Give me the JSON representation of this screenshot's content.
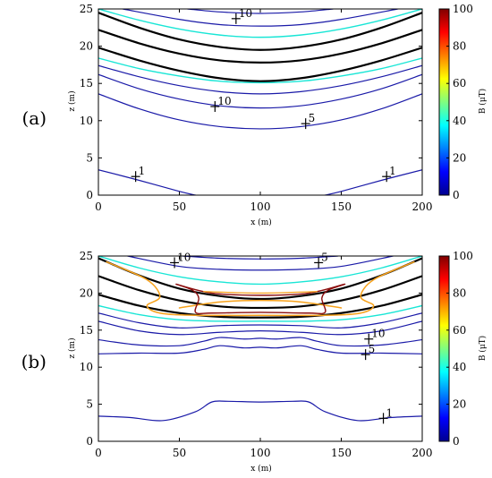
{
  "chart_data": [
    {
      "type": "contour",
      "panel_label": "(a)",
      "xlabel": "x (m)",
      "ylabel": "z (m)",
      "xlim": [
        0,
        200
      ],
      "ylim": [
        0,
        25
      ],
      "xticks": [
        "0",
        "50",
        "100",
        "150",
        "200"
      ],
      "yticks": [
        "0",
        "5",
        "10",
        "15",
        "20",
        "25"
      ],
      "colorbar": {
        "label": "B (μT)",
        "range": [
          0,
          100
        ],
        "ticks": [
          "0",
          "20",
          "40",
          "60",
          "80",
          "100"
        ]
      },
      "contours": [
        {
          "level": 1,
          "color": "#1a1aa8",
          "width": 1.2,
          "x": [
            0,
            25,
            50,
            60
          ],
          "z": [
            3.4,
            2.0,
            0.5,
            0
          ]
        },
        {
          "level": 1,
          "color": "#1a1aa8",
          "width": 1.2,
          "x": [
            140,
            150,
            175,
            200
          ],
          "z": [
            0,
            0.5,
            2.0,
            3.4
          ]
        },
        {
          "level": 5,
          "color": "#1a1aa8",
          "width": 1.2,
          "x": [
            0,
            25,
            50,
            75,
            100,
            125,
            150,
            175,
            200
          ],
          "z": [
            13.6,
            11.6,
            10.1,
            9.2,
            8.9,
            9.2,
            10.1,
            11.6,
            13.6
          ]
        },
        {
          "level": 10,
          "color": "#1a1aa8",
          "width": 1.2,
          "x": [
            0,
            25,
            50,
            75,
            100,
            125,
            150,
            175,
            200
          ],
          "z": [
            16.2,
            14.3,
            12.9,
            12.0,
            11.7,
            12.0,
            12.9,
            14.3,
            16.2
          ]
        },
        {
          "level": 15,
          "color": "#1a1aa8",
          "width": 1.2,
          "x": [
            0,
            25,
            50,
            75,
            100,
            125,
            150,
            175,
            200
          ],
          "z": [
            17.4,
            15.9,
            14.7,
            13.9,
            13.6,
            13.9,
            14.7,
            15.9,
            17.4
          ]
        },
        {
          "level": 25,
          "color": "#19e6d6",
          "width": 1.4,
          "x": [
            0,
            25,
            50,
            75,
            100,
            125,
            150,
            175,
            200
          ],
          "z": [
            18.4,
            17.0,
            16.0,
            15.3,
            15.1,
            15.3,
            16.0,
            17.0,
            18.4
          ]
        },
        {
          "level": 35,
          "color": "#000000",
          "width": 2.2,
          "x": [
            0,
            25,
            50,
            75,
            100,
            125,
            150,
            175,
            200
          ],
          "z": [
            19.8,
            18.1,
            16.7,
            15.7,
            15.3,
            15.7,
            16.7,
            18.1,
            19.8
          ]
        },
        {
          "level": 35,
          "color": "#000000",
          "width": 2.2,
          "x": [
            0,
            25,
            50,
            75,
            100,
            125,
            150,
            175,
            200
          ],
          "z": [
            24.5,
            22.5,
            20.9,
            19.9,
            19.5,
            19.9,
            20.9,
            22.5,
            24.5
          ]
        },
        {
          "level": 35,
          "color": "#000000",
          "width": 2.2,
          "x": [
            0,
            25,
            50,
            75,
            100,
            125,
            150,
            175,
            200
          ],
          "z": [
            22.2,
            20.4,
            19.0,
            18.1,
            17.8,
            18.1,
            19.0,
            20.4,
            22.2
          ]
        },
        {
          "level": 25,
          "color": "#19e6d6",
          "width": 1.4,
          "x": [
            0,
            25,
            50,
            75,
            100,
            125,
            150,
            175,
            200
          ],
          "z": [
            25.0,
            23.5,
            22.3,
            21.5,
            21.2,
            21.5,
            22.3,
            23.5,
            25.0
          ]
        },
        {
          "level": 15,
          "color": "#1a1aa8",
          "width": 1.2,
          "x": [
            15,
            50,
            75,
            100,
            125,
            150,
            185
          ],
          "z": [
            25.0,
            23.6,
            22.9,
            22.7,
            22.9,
            23.6,
            25.0
          ]
        },
        {
          "level": 10,
          "color": "#1a1aa8",
          "width": 1.2,
          "x": [
            55,
            75,
            100,
            125,
            145
          ],
          "z": [
            25.0,
            24.6,
            24.4,
            24.6,
            25.0
          ]
        }
      ],
      "labels": [
        {
          "text": "10",
          "x": 85,
          "z": 23.7
        },
        {
          "text": "10",
          "x": 72,
          "z": 11.9
        },
        {
          "text": "5",
          "x": 128,
          "z": 9.6
        },
        {
          "text": "1",
          "x": 23,
          "z": 2.5
        },
        {
          "text": "1",
          "x": 178,
          "z": 2.5
        }
      ]
    },
    {
      "type": "contour",
      "panel_label": "(b)",
      "xlabel": "x (m)",
      "ylabel": "z (m)",
      "xlim": [
        0,
        200
      ],
      "ylim": [
        0,
        25
      ],
      "xticks": [
        "0",
        "50",
        "100",
        "150",
        "200"
      ],
      "yticks": [
        "0",
        "5",
        "10",
        "15",
        "20",
        "25"
      ],
      "colorbar": {
        "label": "B (μT)",
        "range": [
          0,
          100
        ],
        "ticks": [
          "0",
          "20",
          "40",
          "60",
          "80",
          "100"
        ]
      },
      "contours": [
        {
          "level": 1,
          "color": "#1a1aa8",
          "width": 1.2,
          "x": [
            0,
            20,
            40,
            60,
            70,
            80,
            100,
            120,
            130,
            140,
            160,
            180,
            200
          ],
          "z": [
            3.4,
            3.2,
            2.8,
            4.0,
            5.3,
            5.4,
            5.3,
            5.4,
            5.3,
            4.0,
            2.8,
            3.2,
            3.4
          ]
        },
        {
          "level": 5,
          "color": "#1a1aa8",
          "width": 1.2,
          "x": [
            0,
            25,
            50,
            65,
            75,
            90,
            100,
            110,
            125,
            135,
            150,
            175,
            200
          ],
          "z": [
            11.8,
            11.9,
            11.9,
            12.4,
            12.9,
            12.6,
            12.7,
            12.6,
            12.9,
            12.4,
            11.9,
            11.9,
            11.8
          ]
        },
        {
          "level": 10,
          "color": "#1a1aa8",
          "width": 1.2,
          "x": [
            0,
            25,
            50,
            65,
            75,
            90,
            100,
            110,
            125,
            135,
            150,
            175,
            200
          ],
          "z": [
            13.7,
            13.0,
            12.9,
            13.5,
            14.0,
            13.8,
            13.9,
            13.8,
            14.0,
            13.5,
            12.9,
            13.0,
            13.7
          ]
        },
        {
          "level": 15,
          "color": "#1a1aa8",
          "width": 1.2,
          "x": [
            0,
            25,
            50,
            75,
            100,
            125,
            150,
            175,
            200
          ],
          "z": [
            16.2,
            14.9,
            14.4,
            14.7,
            14.9,
            14.7,
            14.4,
            14.9,
            16.2
          ]
        },
        {
          "level": 20,
          "color": "#1a1aa8",
          "width": 1.2,
          "x": [
            0,
            25,
            50,
            75,
            100,
            125,
            150,
            175,
            200
          ],
          "z": [
            17.3,
            16.0,
            15.3,
            15.6,
            15.7,
            15.6,
            15.3,
            16.0,
            17.3
          ]
        },
        {
          "level": 25,
          "color": "#19e6d6",
          "width": 1.4,
          "x": [
            0,
            25,
            50,
            75,
            100,
            125,
            150,
            175,
            200
          ],
          "z": [
            18.3,
            17.1,
            16.4,
            16.2,
            16.2,
            16.2,
            16.4,
            17.1,
            18.3
          ]
        },
        {
          "level": 35,
          "color": "#000000",
          "width": 2.2,
          "x": [
            0,
            25,
            50,
            75,
            100,
            125,
            150,
            175,
            200
          ],
          "z": [
            19.8,
            18.3,
            17.3,
            16.8,
            16.7,
            16.8,
            17.3,
            18.3,
            19.8
          ]
        },
        {
          "level": 35,
          "color": "#000000",
          "width": 2.2,
          "x": [
            0,
            25,
            50,
            75,
            100,
            125,
            150,
            175,
            200
          ],
          "z": [
            24.7,
            22.4,
            20.6,
            19.6,
            19.2,
            19.6,
            20.6,
            22.4,
            24.7
          ]
        },
        {
          "level": 35,
          "color": "#000000",
          "width": 2.2,
          "x": [
            0,
            25,
            50,
            75,
            100,
            125,
            150,
            175,
            200
          ],
          "z": [
            22.3,
            20.4,
            19.0,
            18.2,
            18.0,
            18.2,
            19.0,
            20.4,
            22.3
          ]
        },
        {
          "level": 60,
          "color": "#f7a21b",
          "width": 1.5,
          "x": [
            5,
            30,
            38,
            30,
            38,
            60,
            100,
            140,
            162,
            170,
            162,
            170,
            195
          ],
          "z": [
            24.2,
            21.8,
            19.5,
            18.3,
            17.3,
            17.0,
            17.0,
            17.0,
            17.3,
            18.3,
            19.5,
            21.8,
            24.2
          ]
        },
        {
          "level": 60,
          "color": "#f7a21b",
          "width": 1.5,
          "x": [
            50,
            75,
            100,
            125,
            150
          ],
          "z": [
            18.0,
            18.8,
            19.0,
            18.8,
            18.0
          ]
        },
        {
          "level": 90,
          "color": "#8b0d0d",
          "width": 1.4,
          "x": [
            48,
            58,
            62,
            60,
            70,
            100,
            130,
            140,
            138,
            142,
            152,
            130,
            100,
            70,
            48
          ],
          "z": [
            21.2,
            20.4,
            19.3,
            17.4,
            17.3,
            17.4,
            17.3,
            17.4,
            19.3,
            20.4,
            21.2,
            20.0,
            19.7,
            20.0,
            21.2
          ]
        },
        {
          "level": 60,
          "color": "#f7a21b",
          "width": 1.2,
          "x": [
            65,
            100,
            135
          ],
          "z": [
            20.2,
            20.0,
            20.2
          ]
        },
        {
          "level": 25,
          "color": "#19e6d6",
          "width": 1.4,
          "x": [
            0,
            25,
            50,
            75,
            100,
            125,
            150,
            175,
            200
          ],
          "z": [
            25.0,
            23.4,
            22.2,
            21.5,
            21.2,
            21.5,
            22.2,
            23.4,
            25.0
          ]
        },
        {
          "level": 15,
          "color": "#1a1aa8",
          "width": 1.2,
          "x": [
            18,
            50,
            75,
            100,
            125,
            150,
            182
          ],
          "z": [
            25.0,
            23.6,
            23.2,
            23.1,
            23.2,
            23.6,
            25.0
          ]
        },
        {
          "level": 10,
          "color": "#1a1aa8",
          "width": 1.2,
          "x": [
            52,
            75,
            100,
            125,
            148
          ],
          "z": [
            25.0,
            24.7,
            24.6,
            24.7,
            25.0
          ]
        }
      ],
      "labels": [
        {
          "text": "10",
          "x": 47,
          "z": 24.1
        },
        {
          "text": "5",
          "x": 136,
          "z": 24.1
        },
        {
          "text": "10",
          "x": 167,
          "z": 13.8
        },
        {
          "text": "5",
          "x": 165,
          "z": 11.7
        },
        {
          "text": "1",
          "x": 176,
          "z": 3.1
        }
      ]
    }
  ]
}
